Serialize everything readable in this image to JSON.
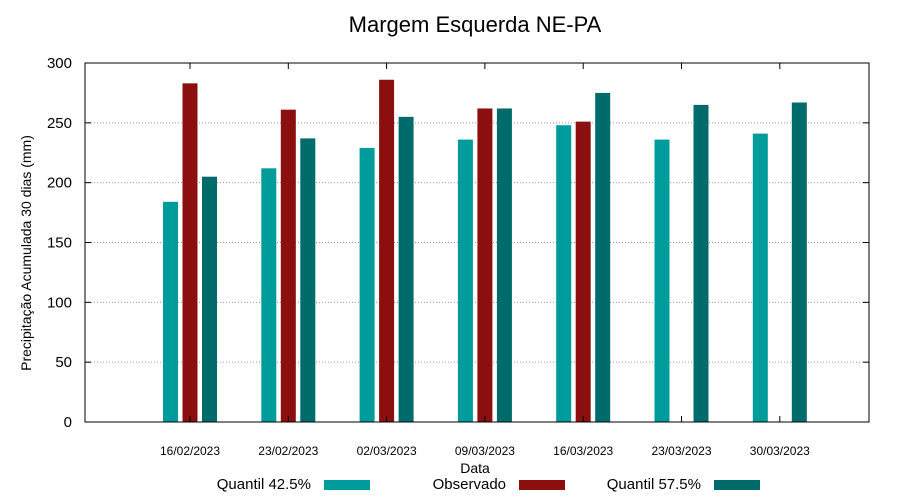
{
  "chart_data": {
    "type": "bar",
    "title": "Margem Esquerda NE-PA",
    "xlabel": "Data",
    "ylabel": "Precipitação Acumulada 30 dias (mm)",
    "ylim": [
      0,
      300
    ],
    "yticks": [
      0,
      50,
      100,
      150,
      200,
      250,
      300
    ],
    "grid": true,
    "legend": "bottom",
    "categories": [
      "16/02/2023",
      "23/02/2023",
      "02/03/2023",
      "09/03/2023",
      "16/03/2023",
      "23/03/2023",
      "30/03/2023"
    ],
    "series": [
      {
        "name": "Quantil 42.5%",
        "color": "#009b9b",
        "values": [
          184,
          212,
          229,
          236,
          248,
          236,
          241
        ]
      },
      {
        "name": "Observado",
        "color": "#8b0f0f",
        "values": [
          283,
          261,
          286,
          262,
          251,
          null,
          null
        ]
      },
      {
        "name": "Quantil 57.5%",
        "color": "#006b6b",
        "values": [
          205,
          237,
          255,
          262,
          275,
          265,
          267
        ]
      }
    ]
  }
}
